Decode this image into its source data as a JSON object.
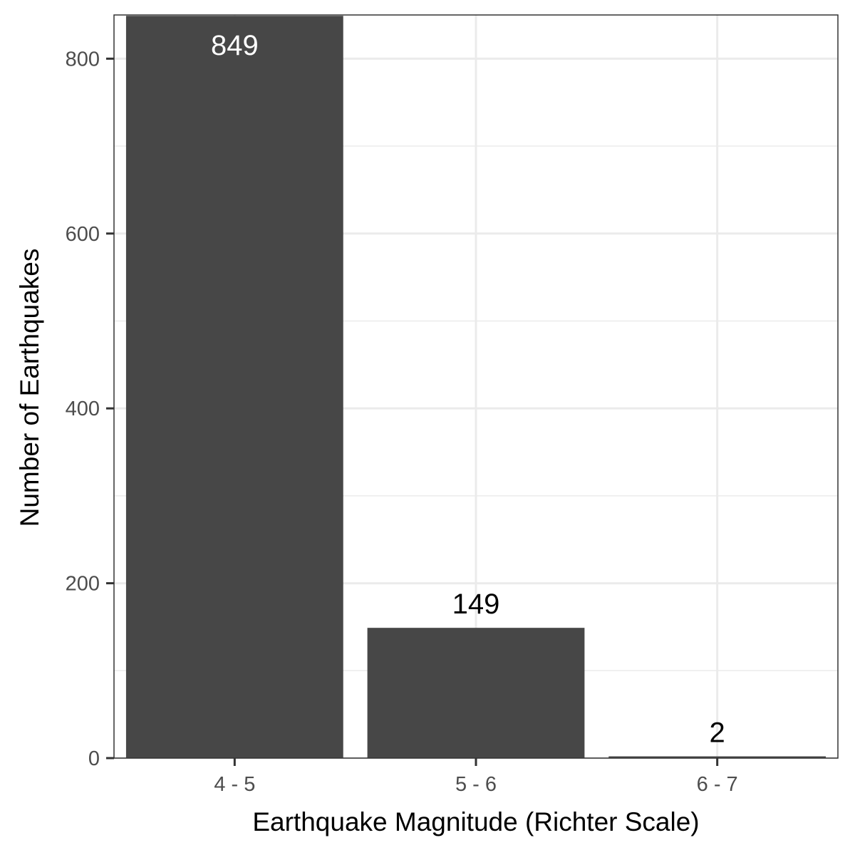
{
  "chart_data": {
    "type": "bar",
    "categories": [
      "4 - 5",
      "5 - 6",
      "6 - 7"
    ],
    "values": [
      849,
      149,
      2
    ],
    "data_labels": [
      "849",
      "149",
      "2"
    ],
    "title": "",
    "xlabel": "Earthquake Magnitude (Richter Scale)",
    "ylabel": "Number of Earthquakes",
    "ylim": [
      0,
      850
    ],
    "yticks": [
      0,
      200,
      400,
      600,
      800
    ],
    "ytick_labels": [
      "0",
      "200",
      "400",
      "600",
      "800"
    ],
    "grid": true,
    "legend": "none",
    "colors": {
      "bar": "#474747",
      "grid": "#ebebeb",
      "panel_border": "#333333",
      "label_inside": "#ffffff",
      "label_outside": "#000000"
    }
  }
}
